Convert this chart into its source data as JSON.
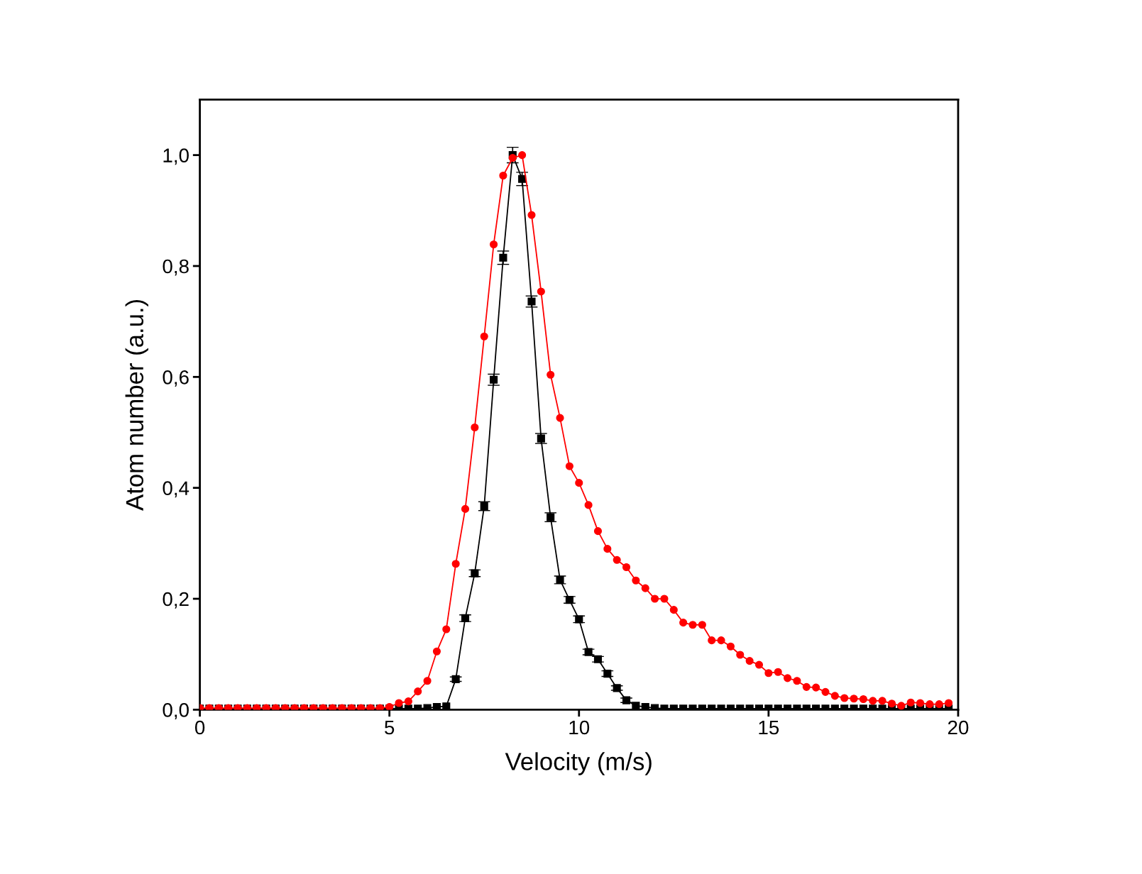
{
  "chart_data": {
    "type": "line",
    "xlabel": "Velocity (m/s)",
    "ylabel": "Atom number (a.u.)",
    "x": [
      0,
      0.25,
      0.5,
      0.75,
      1,
      1.25,
      1.5,
      1.75,
      2,
      2.25,
      2.5,
      2.75,
      3,
      3.25,
      3.5,
      3.75,
      4,
      4.25,
      4.5,
      4.75,
      5,
      5.25,
      5.5,
      5.75,
      6,
      6.25,
      6.5,
      6.75,
      7,
      7.25,
      7.5,
      7.75,
      8,
      8.25,
      8.5,
      8.75,
      9,
      9.25,
      9.5,
      9.75,
      10,
      10.25,
      10.5,
      10.75,
      11,
      11.25,
      11.5,
      11.75,
      12,
      12.25,
      12.5,
      12.75,
      13,
      13.25,
      13.5,
      13.75,
      14,
      14.25,
      14.5,
      14.75,
      15,
      15.25,
      15.5,
      15.75,
      16,
      16.25,
      16.5,
      16.75,
      17,
      17.25,
      17.5,
      17.75,
      18,
      18.25,
      18.5,
      18.75,
      19,
      19.25,
      19.5,
      19.75
    ],
    "series": [
      {
        "color": "#000000",
        "marker": "square",
        "values": [
          0.002,
          0.002,
          0.002,
          0.002,
          0.002,
          0.002,
          0.002,
          0.002,
          0.002,
          0.002,
          0.002,
          0.002,
          0.002,
          0.002,
          0.002,
          0.002,
          0.002,
          0.002,
          0.002,
          0.002,
          0.002,
          0.002,
          0.002,
          0.002,
          0.003,
          0.005,
          0.006,
          0.055,
          0.165,
          0.246,
          0.367,
          0.595,
          0.815,
          1.0,
          0.957,
          0.736,
          0.489,
          0.347,
          0.234,
          0.198,
          0.163,
          0.104,
          0.091,
          0.065,
          0.039,
          0.017,
          0.007,
          0.005,
          0.003,
          0.002,
          0.002,
          0.002,
          0.002,
          0.002,
          0.002,
          0.002,
          0.002,
          0.002,
          0.002,
          0.002,
          0.002,
          0.002,
          0.002,
          0.002,
          0.002,
          0.002,
          0.002,
          0.002,
          0.002,
          0.002,
          0.002,
          0.002,
          0.002,
          0.002,
          0.002,
          0.002,
          0.002,
          0.002,
          0.002,
          0.002
        ],
        "errors": [
          null,
          null,
          null,
          null,
          null,
          null,
          null,
          null,
          null,
          null,
          null,
          null,
          null,
          null,
          null,
          null,
          null,
          null,
          null,
          null,
          null,
          null,
          null,
          null,
          null,
          null,
          null,
          0.004,
          0.006,
          0.006,
          0.008,
          0.01,
          0.012,
          0.014,
          0.012,
          0.01,
          0.009,
          0.008,
          0.007,
          0.006,
          0.006,
          0.005,
          0.005,
          0.005,
          0.004,
          0.004,
          null,
          null,
          null,
          null,
          null,
          null,
          null,
          null,
          null,
          null,
          null,
          null,
          null,
          null,
          null,
          null,
          null,
          null,
          null,
          null,
          null,
          null,
          null,
          null,
          null,
          null,
          null,
          null,
          null,
          null,
          null,
          null,
          null,
          null
        ]
      },
      {
        "color": "#ff0000",
        "marker": "circle",
        "values": [
          0.003,
          0.003,
          0.003,
          0.003,
          0.003,
          0.003,
          0.003,
          0.003,
          0.003,
          0.003,
          0.003,
          0.003,
          0.003,
          0.003,
          0.003,
          0.003,
          0.003,
          0.003,
          0.003,
          0.003,
          0.005,
          0.012,
          0.015,
          0.033,
          0.052,
          0.105,
          0.145,
          0.263,
          0.362,
          0.509,
          0.673,
          0.839,
          0.963,
          0.995,
          1.0,
          0.892,
          0.754,
          0.604,
          0.526,
          0.439,
          0.409,
          0.369,
          0.322,
          0.29,
          0.27,
          0.257,
          0.233,
          0.219,
          0.2,
          0.2,
          0.18,
          0.157,
          0.153,
          0.153,
          0.125,
          0.125,
          0.114,
          0.099,
          0.088,
          0.081,
          0.066,
          0.068,
          0.057,
          0.052,
          0.041,
          0.04,
          0.032,
          0.025,
          0.021,
          0.02,
          0.019,
          0.016,
          0.016,
          0.011,
          0.007,
          0.013,
          0.012,
          0.01,
          0.01,
          0.012
        ]
      }
    ],
    "xlim": [
      0,
      20
    ],
    "xticks": [
      0,
      5,
      10,
      15,
      20
    ],
    "ylim": [
      0,
      1.1
    ],
    "yticks": [
      {
        "value": 0,
        "label": "0,0"
      },
      {
        "value": 0.2,
        "label": "0,2"
      },
      {
        "value": 0.4,
        "label": "0,4"
      },
      {
        "value": 0.6,
        "label": "0,6"
      },
      {
        "value": 0.8,
        "label": "0,8"
      },
      {
        "value": 1.0,
        "label": "1,0"
      }
    ],
    "grid": false,
    "legend": false,
    "line_style": "solid"
  }
}
